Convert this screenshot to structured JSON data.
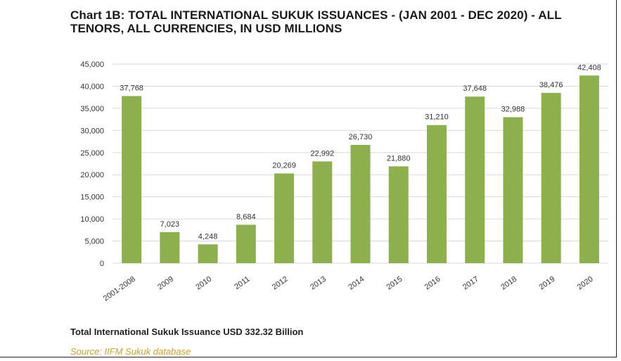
{
  "chart_data": {
    "type": "bar",
    "title": "Chart 1B: TOTAL INTERNATIONAL SUKUK ISSUANCES - (JAN 2001 - DEC 2020) - ALL TENORS, ALL CURRENCIES, IN USD MILLIONS",
    "categories": [
      "2001-2008",
      "2009",
      "2010",
      "2011",
      "2012",
      "2013",
      "2014",
      "2015",
      "2016",
      "2017",
      "2018",
      "2019",
      "2020"
    ],
    "values": [
      37768,
      7023,
      4248,
      8684,
      20269,
      22992,
      26730,
      21880,
      31210,
      37648,
      32988,
      38476,
      42408
    ],
    "value_labels": [
      "37,768",
      "7,023",
      "4,248",
      "8,684",
      "20,269",
      "22,992",
      "26,730",
      "21,880",
      "31,210",
      "37,648",
      "32,988",
      "38,476",
      "42,408"
    ],
    "yticks": [
      0,
      5000,
      10000,
      15000,
      20000,
      25000,
      30000,
      35000,
      40000,
      45000
    ],
    "ytick_labels": [
      "0",
      "5,000",
      "10,000",
      "15,000",
      "20,000",
      "25,000",
      "30,000",
      "35,000",
      "40,000",
      "45,000"
    ],
    "ylim": [
      0,
      45000
    ],
    "xlabel": "",
    "ylabel": "",
    "grid": true,
    "bar_color": "#8db04c",
    "grid_color": "#d9d9d9"
  },
  "footer": {
    "total_text": "Total International Sukuk Issuance USD 332.32 Billion"
  },
  "source": {
    "text": "Source: IIFM Sukuk database"
  }
}
